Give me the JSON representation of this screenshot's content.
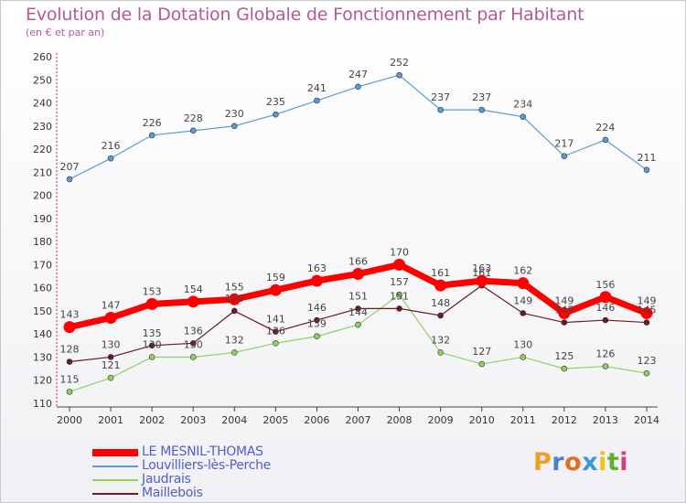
{
  "header": {
    "title": "Evolution de la Dotation Globale de Fonctionnement par Habitant",
    "subtitle": "(en € et par an)"
  },
  "logo": {
    "text": "Proxiti",
    "letter_colors": [
      "#f0a020",
      "#4a7fd0",
      "#e07020",
      "#3a9ad8",
      "#f0c020",
      "#60b030",
      "#d04080"
    ]
  },
  "chart_data": {
    "type": "line",
    "title": "Evolution de la Dotation Globale de Fonctionnement par Habitant",
    "subtitle": "(en € et par an)",
    "xlabel": "",
    "ylabel": "",
    "x": [
      2000,
      2001,
      2002,
      2003,
      2004,
      2005,
      2006,
      2007,
      2008,
      2009,
      2010,
      2011,
      2012,
      2013,
      2014
    ],
    "ylim": [
      110,
      260
    ],
    "yticks": [
      110,
      120,
      130,
      140,
      150,
      160,
      170,
      180,
      190,
      200,
      210,
      220,
      230,
      240,
      250,
      260
    ],
    "grid": false,
    "legend_position": "bottom-left",
    "series": [
      {
        "name": "LE MESNIL-THOMAS",
        "color": "#ff0000",
        "emphasis": true,
        "values": [
          143,
          147,
          153,
          154,
          155,
          159,
          163,
          166,
          170,
          161,
          163,
          162,
          149,
          156,
          149
        ]
      },
      {
        "name": "Louvilliers-lès-Perche",
        "color": "#5b9bd5",
        "values": [
          207,
          216,
          226,
          228,
          230,
          235,
          241,
          247,
          252,
          237,
          237,
          234,
          217,
          224,
          211
        ]
      },
      {
        "name": "Jaudrais",
        "color": "#90d060",
        "values": [
          115,
          121,
          130,
          130,
          132,
          136,
          139,
          144,
          157,
          132,
          127,
          130,
          125,
          126,
          123
        ]
      },
      {
        "name": "Maillebois",
        "color": "#6b1a22",
        "values": [
          128,
          130,
          135,
          136,
          150,
          141,
          146,
          151,
          151,
          148,
          161,
          149,
          145,
          146,
          145
        ]
      }
    ]
  }
}
